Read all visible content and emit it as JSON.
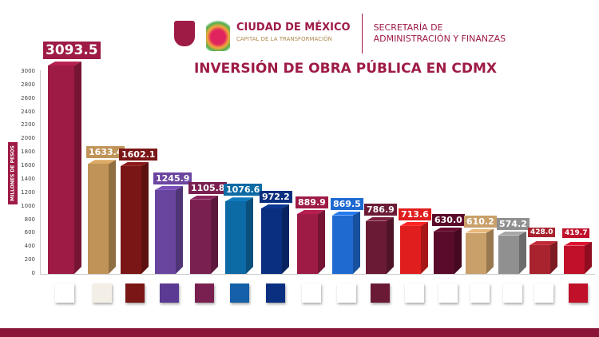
{
  "header": {
    "city": "CIUDAD DE MÉXICO",
    "city_sub": "CAPITAL DE LA TRANSFORMACIÓN",
    "secretaria_line1": "SECRETARÍA DE",
    "secretaria_line2": "ADMINISTRACIÓN Y FINANZAS"
  },
  "chart_data": {
    "type": "bar",
    "title": "INVERSIÓN DE OBRA PÚBLICA EN CDMX",
    "ylabel": "MILLONES DE PESOS",
    "ylim": [
      0,
      3000
    ],
    "yticks": [
      "0",
      "200",
      "400",
      "600",
      "800",
      "1000",
      "1200",
      "1400",
      "1600",
      "1800",
      "2000",
      "2200",
      "2400",
      "2600",
      "2800",
      "3000"
    ],
    "grid": false,
    "categories_note_logos": true,
    "values": [
      3093.5,
      1633.4,
      1602.1,
      1245.9,
      1105.8,
      1076.6,
      972.2,
      889.9,
      869.5,
      786.9,
      713.6,
      630.0,
      610.2,
      574.2,
      428.0,
      419.7
    ],
    "labels": [
      "3093.5",
      "1633.4",
      "1602.1",
      "1245.9",
      "1105.8",
      "1076.6",
      "972.2",
      "889.9",
      "869.5",
      "786.9",
      "713.6",
      "630.0",
      "610.2",
      "574.2",
      "428.0",
      "419.7"
    ],
    "colors": [
      "#9e1b45",
      "#c09458",
      "#7a1616",
      "#6a45a0",
      "#7a2050",
      "#0c6aa5",
      "#0a2f80",
      "#9e1b45",
      "#1f6ad0",
      "#6b1a35",
      "#e01e1e",
      "#5a0a2a",
      "#c9a06a",
      "#909090",
      "#a8232e",
      "#c0102a"
    ],
    "logo_colors": [
      "#ffffff",
      "#f4efe6",
      "#7a1616",
      "#5b3a94",
      "#7a2050",
      "#1560a8",
      "#0a2f80",
      "#ffffff",
      "#ffffff",
      "#6b1a35",
      "#ffffff",
      "#ffffff",
      "#ffffff",
      "#ffffff",
      "#ffffff",
      "#c0102a"
    ]
  }
}
